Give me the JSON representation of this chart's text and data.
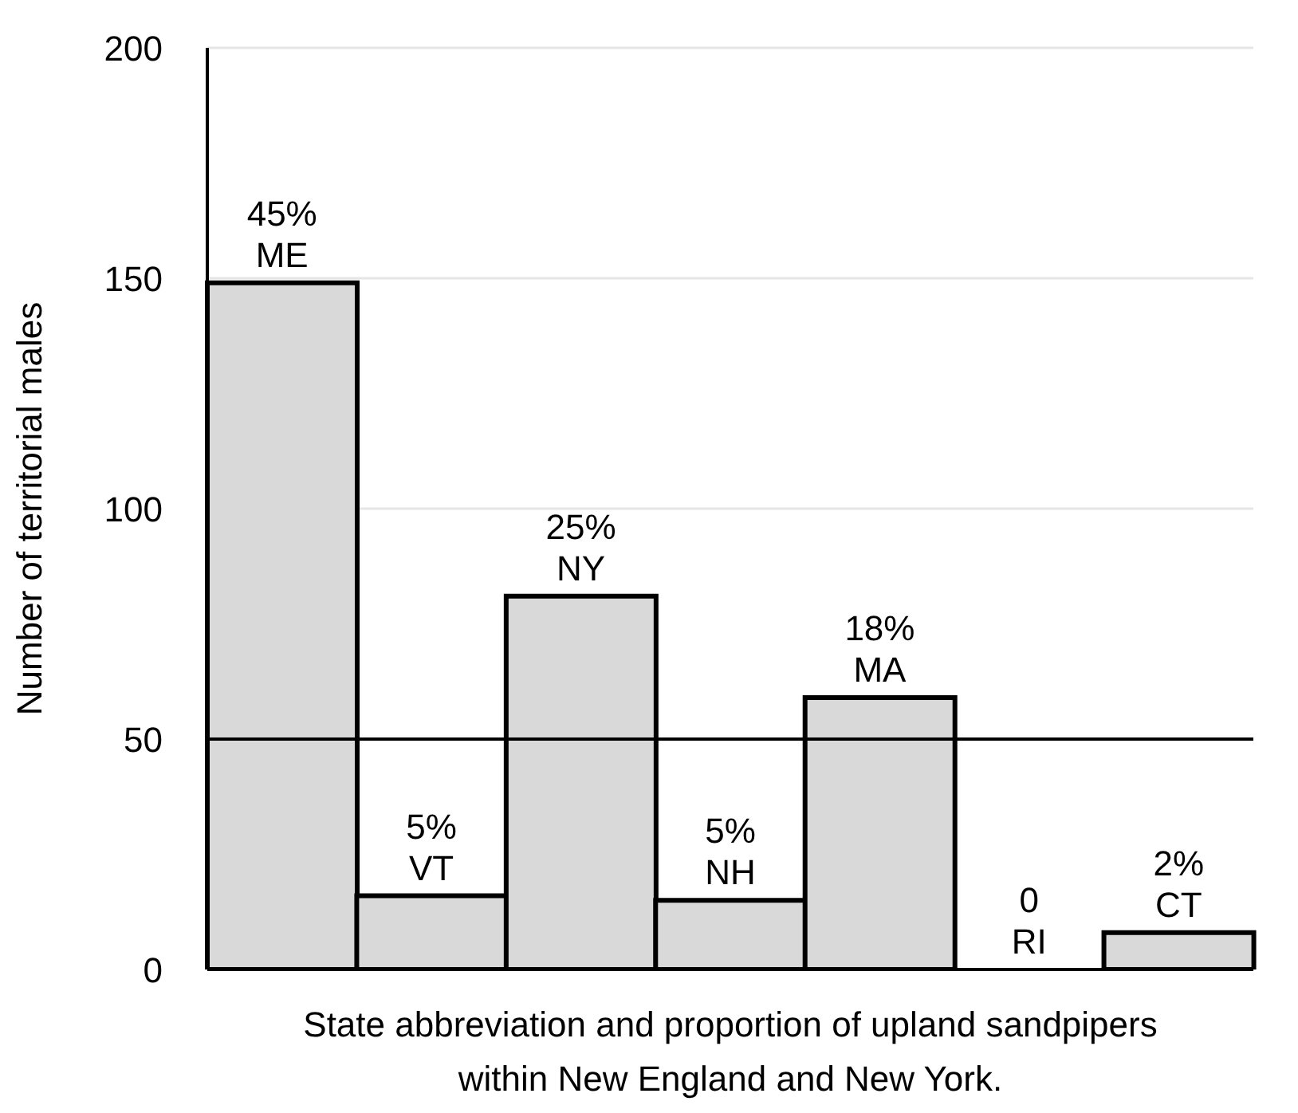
{
  "chart_data": {
    "type": "bar",
    "xlabel": "State abbreviation and proportion of upland sandpipers within New England and New York.",
    "ylabel": "Number of territorial males",
    "categories": [
      "ME",
      "VT",
      "NY",
      "NH",
      "MA",
      "RI",
      "CT"
    ],
    "values": [
      149,
      16,
      81,
      15,
      59,
      0,
      8
    ],
    "annotations": [
      {
        "text": "45%",
        "x": "ME",
        "y": 149
      },
      {
        "text": "5%",
        "x": "VT",
        "y": 16
      },
      {
        "text": "25%",
        "x": "NY",
        "y": 81
      },
      {
        "text": "5%",
        "x": "NH",
        "y": 15
      },
      {
        "text": "18%",
        "x": "MA",
        "y": 59
      },
      {
        "text": "0",
        "x": "RI",
        "y": 0
      },
      {
        "text": "2%",
        "x": "CT",
        "y": 8
      }
    ],
    "color": "#d9d9d9",
    "ylim": [
      0,
      200
    ],
    "yticks": [
      0,
      50,
      100,
      150,
      200
    ],
    "grid": "y",
    "ref_lines": [
      {
        "axis": "y",
        "value": 50,
        "color": "#000000"
      }
    ],
    "tick_labels": "y"
  }
}
